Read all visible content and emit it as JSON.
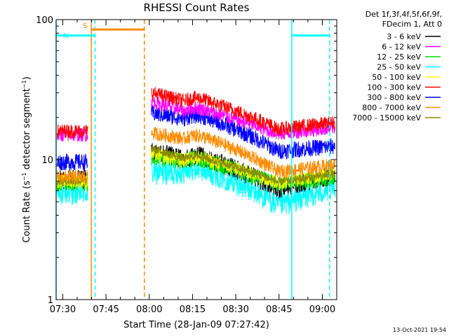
{
  "chart_data": {
    "type": "line",
    "title": "RHESSI Count Rates",
    "xlabel": "Start Time (28-Jan-09 07:27:42)",
    "ylabel_main": "Count Rate (s",
    "ylabel_exp1": "−1",
    "ylabel_mid": " detector segment",
    "ylabel_exp2": "−1",
    "ylabel_end": ")",
    "y_scale": "log",
    "ylim": [
      1,
      100
    ],
    "xlim_minutes": [
      0,
      97.3
    ],
    "x_ticks": [
      {
        "label": "07:30",
        "minutes": 2.3
      },
      {
        "label": "07:45",
        "minutes": 17.3
      },
      {
        "label": "08:00",
        "minutes": 32.3
      },
      {
        "label": "08:15",
        "minutes": 47.3
      },
      {
        "label": "08:30",
        "minutes": 62.3
      },
      {
        "label": "08:45",
        "minutes": 77.3
      },
      {
        "label": "09:00",
        "minutes": 92.3
      }
    ],
    "y_ticks": [
      {
        "label": "1",
        "value": 1
      },
      {
        "label": "10",
        "value": 10
      },
      {
        "label": "100",
        "value": 100
      }
    ],
    "legend_header": [
      "Det 1f,3f,4f,5f,6f,9f,",
      "FDecim 1, Att 0"
    ],
    "legend_placement": "right",
    "series": [
      {
        "name": "3 - 6 keV",
        "color": "#000000",
        "pre": 7.2,
        "flare_start": 11.5,
        "flare_peak": 10.0,
        "dip": 6.2,
        "end": 7.8,
        "noise": 0.07
      },
      {
        "name": "6 - 12 keV",
        "color": "#ff00ff",
        "pre": 15.0,
        "flare_start": 26.0,
        "flare_peak": 22.0,
        "dip": 15.2,
        "end": 17.0,
        "noise": 0.05
      },
      {
        "name": "12 - 25 keV",
        "color": "#00dd00",
        "pre": 6.8,
        "flare_start": 10.5,
        "flare_peak": 9.6,
        "dip": 6.6,
        "end": 7.6,
        "noise": 0.06
      },
      {
        "name": "25 - 50 keV",
        "color": "#00ffff",
        "pre": 5.8,
        "flare_start": 8.0,
        "flare_peak": 8.2,
        "dip": 4.7,
        "end": 6.3,
        "noise": 0.09
      },
      {
        "name": "50 - 100 keV",
        "color": "#ffff00",
        "pre": 7.0,
        "flare_start": 11.0,
        "flare_peak": 9.8,
        "dip": 6.8,
        "end": 8.0,
        "noise": 0.05
      },
      {
        "name": "100 - 300 keV",
        "color": "#ff0000",
        "pre": 16.0,
        "flare_start": 30.0,
        "flare_peak": 26.0,
        "dip": 16.5,
        "end": 18.5,
        "noise": 0.05
      },
      {
        "name": "300 - 800 keV",
        "color": "#0000ff",
        "pre": 9.6,
        "flare_start": 21.5,
        "flare_peak": 19.5,
        "dip": 11.5,
        "end": 12.5,
        "noise": 0.06
      },
      {
        "name": "800 - 7000 keV",
        "color": "#ff8c00",
        "pre": 7.5,
        "flare_start": 15.5,
        "flare_peak": 14.0,
        "dip": 8.2,
        "end": 9.2,
        "noise": 0.05
      },
      {
        "name": "7000 - 15000 keV",
        "color": "#8b8b00",
        "pre": 7.0,
        "flare_start": 12.0,
        "flare_peak": 10.0,
        "dip": 6.9,
        "end": 7.9,
        "noise": 0.03
      }
    ],
    "gaps_minutes": [
      [
        11.0,
        33.0
      ]
    ],
    "markers": [
      {
        "kind": "line",
        "color": "#00ffff",
        "minutes": 0.0,
        "style": "solid"
      },
      {
        "kind": "line",
        "color": "#ff8c00",
        "minutes": 12.2,
        "style": "solid"
      },
      {
        "kind": "line",
        "color": "#00ffff",
        "minutes": 13.5,
        "style": "dashed"
      },
      {
        "kind": "line",
        "color": "#ff8c00",
        "minutes": 30.6,
        "style": "dashed"
      },
      {
        "kind": "line",
        "color": "#00ffff",
        "minutes": 81.7,
        "style": "solid"
      },
      {
        "kind": "line",
        "color": "#00ffff",
        "minutes": 94.8,
        "style": "dashed"
      }
    ],
    "bars": [
      {
        "label": "S",
        "color": "#ff8c00",
        "from": 12.2,
        "to": 30.6,
        "value": 85
      },
      {
        "label": "N",
        "color": "#00ffff",
        "from": 0.0,
        "to": 13.5,
        "value": 77
      },
      {
        "label": "",
        "color": "#00ffff",
        "from": 81.7,
        "to": 94.8,
        "value": 77
      }
    ],
    "footer_timestamp": "13-Oct-2021 19:54"
  }
}
